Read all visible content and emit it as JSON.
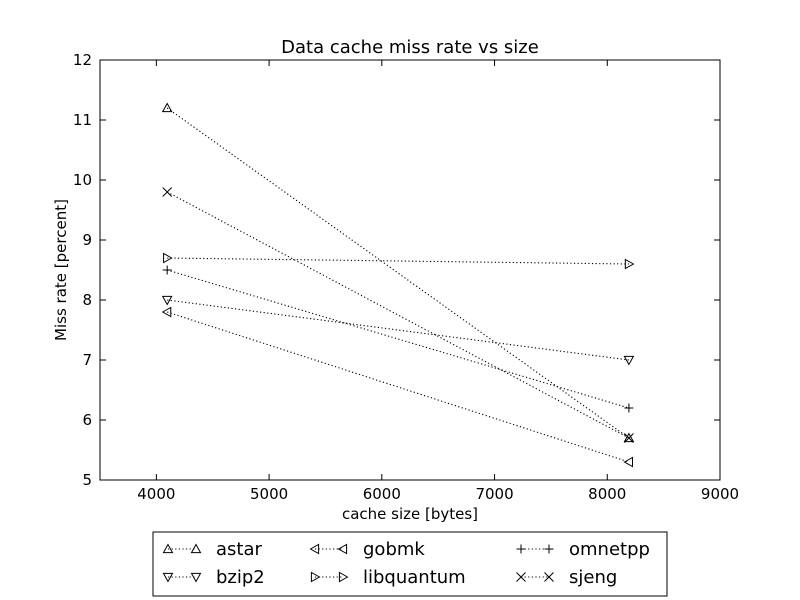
{
  "chart_data": {
    "type": "line",
    "title": "Data cache miss rate vs size",
    "xlabel": "cache size [bytes]",
    "ylabel": "Miss rate [percent]",
    "xlim": [
      3500,
      9000
    ],
    "ylim": [
      5,
      12
    ],
    "xticks": [
      4000,
      5000,
      6000,
      7000,
      8000,
      9000
    ],
    "yticks": [
      5,
      6,
      7,
      8,
      9,
      10,
      11,
      12
    ],
    "grid": false,
    "legend_position": "bottom-center, outside plot",
    "line_style": "dotted",
    "line_color": "#000000",
    "x": [
      4096,
      8192
    ],
    "series": [
      {
        "name": "astar",
        "marker": "triangle-up",
        "values": [
          11.2,
          5.7
        ]
      },
      {
        "name": "bzip2",
        "marker": "triangle-down",
        "values": [
          8.0,
          7.0
        ]
      },
      {
        "name": "gobmk",
        "marker": "triangle-left",
        "values": [
          7.8,
          5.3
        ]
      },
      {
        "name": "libquantum",
        "marker": "triangle-right",
        "values": [
          8.7,
          8.6
        ]
      },
      {
        "name": "omnetpp",
        "marker": "plus",
        "values": [
          8.5,
          6.2
        ]
      },
      {
        "name": "sjeng",
        "marker": "x",
        "values": [
          9.8,
          5.7
        ]
      }
    ]
  }
}
